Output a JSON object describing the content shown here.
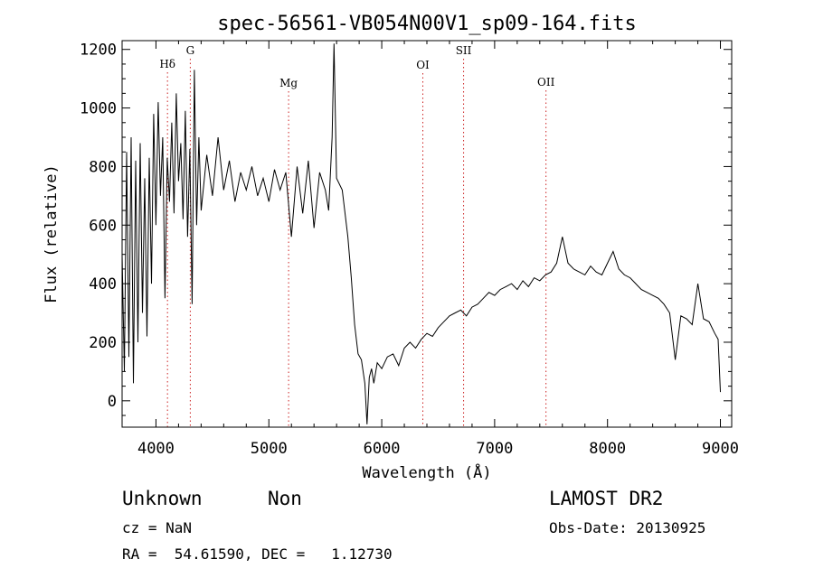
{
  "chart_data": {
    "type": "line",
    "title": "spec-56561-VB054N00V1_sp09-164.fits",
    "xlabel": "Wavelength (Å)",
    "ylabel": "Flux (relative)",
    "xlim": [
      3700,
      9100
    ],
    "ylim": [
      -90,
      1230
    ],
    "x_ticks": [
      4000,
      5000,
      6000,
      7000,
      8000,
      9000
    ],
    "y_ticks": [
      0,
      200,
      400,
      600,
      800,
      1000,
      1200
    ],
    "grid": false,
    "series": [
      {
        "x": [
          3700,
          3720,
          3740,
          3760,
          3780,
          3800,
          3820,
          3840,
          3860,
          3880,
          3900,
          3920,
          3940,
          3960,
          3980,
          4000,
          4020,
          4040,
          4060,
          4080,
          4100,
          4120,
          4140,
          4160,
          4180,
          4200,
          4220,
          4240,
          4260,
          4280,
          4300,
          4320,
          4340,
          4360,
          4380,
          4400,
          4450,
          4500,
          4550,
          4600,
          4650,
          4700,
          4750,
          4800,
          4850,
          4900,
          4950,
          5000,
          5050,
          5100,
          5150,
          5200,
          5250,
          5300,
          5350,
          5400,
          5450,
          5500,
          5530,
          5560,
          5577,
          5600,
          5650,
          5700,
          5730,
          5760,
          5790,
          5820,
          5850,
          5870,
          5890,
          5910,
          5930,
          5960,
          6000,
          6050,
          6100,
          6150,
          6200,
          6250,
          6300,
          6350,
          6400,
          6450,
          6500,
          6550,
          6600,
          6650,
          6700,
          6750,
          6800,
          6850,
          6900,
          6950,
          7000,
          7050,
          7100,
          7150,
          7200,
          7250,
          7300,
          7350,
          7400,
          7450,
          7500,
          7550,
          7600,
          7650,
          7700,
          7750,
          7800,
          7850,
          7900,
          7950,
          8000,
          8050,
          8100,
          8150,
          8200,
          8250,
          8300,
          8350,
          8400,
          8450,
          8500,
          8550,
          8600,
          8650,
          8700,
          8750,
          8800,
          8850,
          8900,
          8950,
          8980,
          9000
        ],
        "y": [
          500,
          100,
          850,
          150,
          900,
          60,
          820,
          200,
          880,
          300,
          760,
          220,
          830,
          400,
          980,
          600,
          1020,
          700,
          900,
          350,
          830,
          680,
          950,
          640,
          1050,
          750,
          880,
          620,
          990,
          560,
          860,
          330,
          1130,
          600,
          900,
          650,
          840,
          700,
          900,
          720,
          820,
          680,
          780,
          720,
          800,
          700,
          760,
          680,
          790,
          720,
          780,
          560,
          800,
          640,
          820,
          590,
          780,
          720,
          650,
          900,
          1220,
          760,
          720,
          560,
          420,
          260,
          160,
          140,
          60,
          -80,
          80,
          110,
          60,
          130,
          110,
          150,
          160,
          120,
          180,
          200,
          180,
          210,
          230,
          220,
          250,
          270,
          290,
          300,
          310,
          290,
          320,
          330,
          350,
          370,
          360,
          380,
          390,
          400,
          380,
          410,
          390,
          420,
          410,
          430,
          440,
          470,
          560,
          470,
          450,
          440,
          430,
          460,
          440,
          430,
          470,
          510,
          450,
          430,
          420,
          400,
          380,
          370,
          360,
          350,
          330,
          300,
          140,
          290,
          280,
          260,
          400,
          280,
          270,
          230,
          210,
          30
        ],
        "color": "#000000"
      }
    ],
    "lines": [
      {
        "label": "Hδ",
        "x": 4102
      },
      {
        "label": "G",
        "x": 4304
      },
      {
        "label": "Mg",
        "x": 5175
      },
      {
        "label": "OI",
        "x": 6364
      },
      {
        "label": "SII",
        "x": 6725
      },
      {
        "label": "OII",
        "x": 7455
      }
    ],
    "line_color": "#cc2222"
  },
  "info": {
    "class": "Unknown",
    "subclass": "Non",
    "cz": "cz = NaN",
    "coords": "RA =  54.61590, DEC =   1.12730",
    "survey": "LAMOST DR2",
    "obs_date": "Obs-Date: 20130925"
  }
}
